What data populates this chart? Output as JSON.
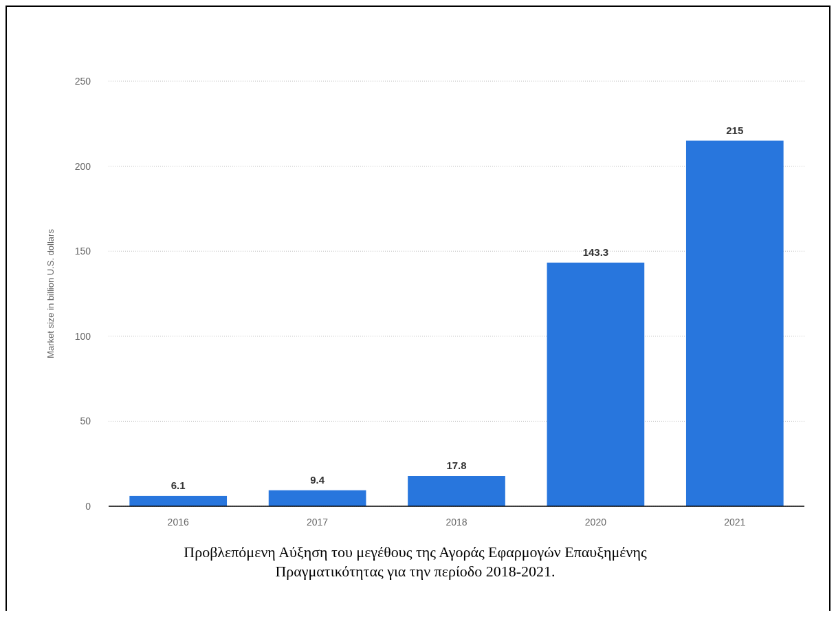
{
  "chart_data": {
    "type": "bar",
    "ylabel": "Market size in billion U.S. dollars",
    "categories": [
      "2016",
      "2017",
      "2018",
      "2020",
      "2021"
    ],
    "values": [
      6.1,
      9.4,
      17.8,
      143.3,
      215
    ],
    "color": "#2876dd",
    "ylim": [
      0,
      250
    ],
    "yticks": [
      0,
      50,
      100,
      150,
      200,
      250
    ],
    "grid": "y",
    "data_labels": true,
    "annotations": [
      "Προβλεπόμενη Αύξηση του μεγέθους της Αγοράς Εφαρμογών Επαυξημένης Πραγματικότητας για την περίοδο 2018-2021."
    ]
  }
}
